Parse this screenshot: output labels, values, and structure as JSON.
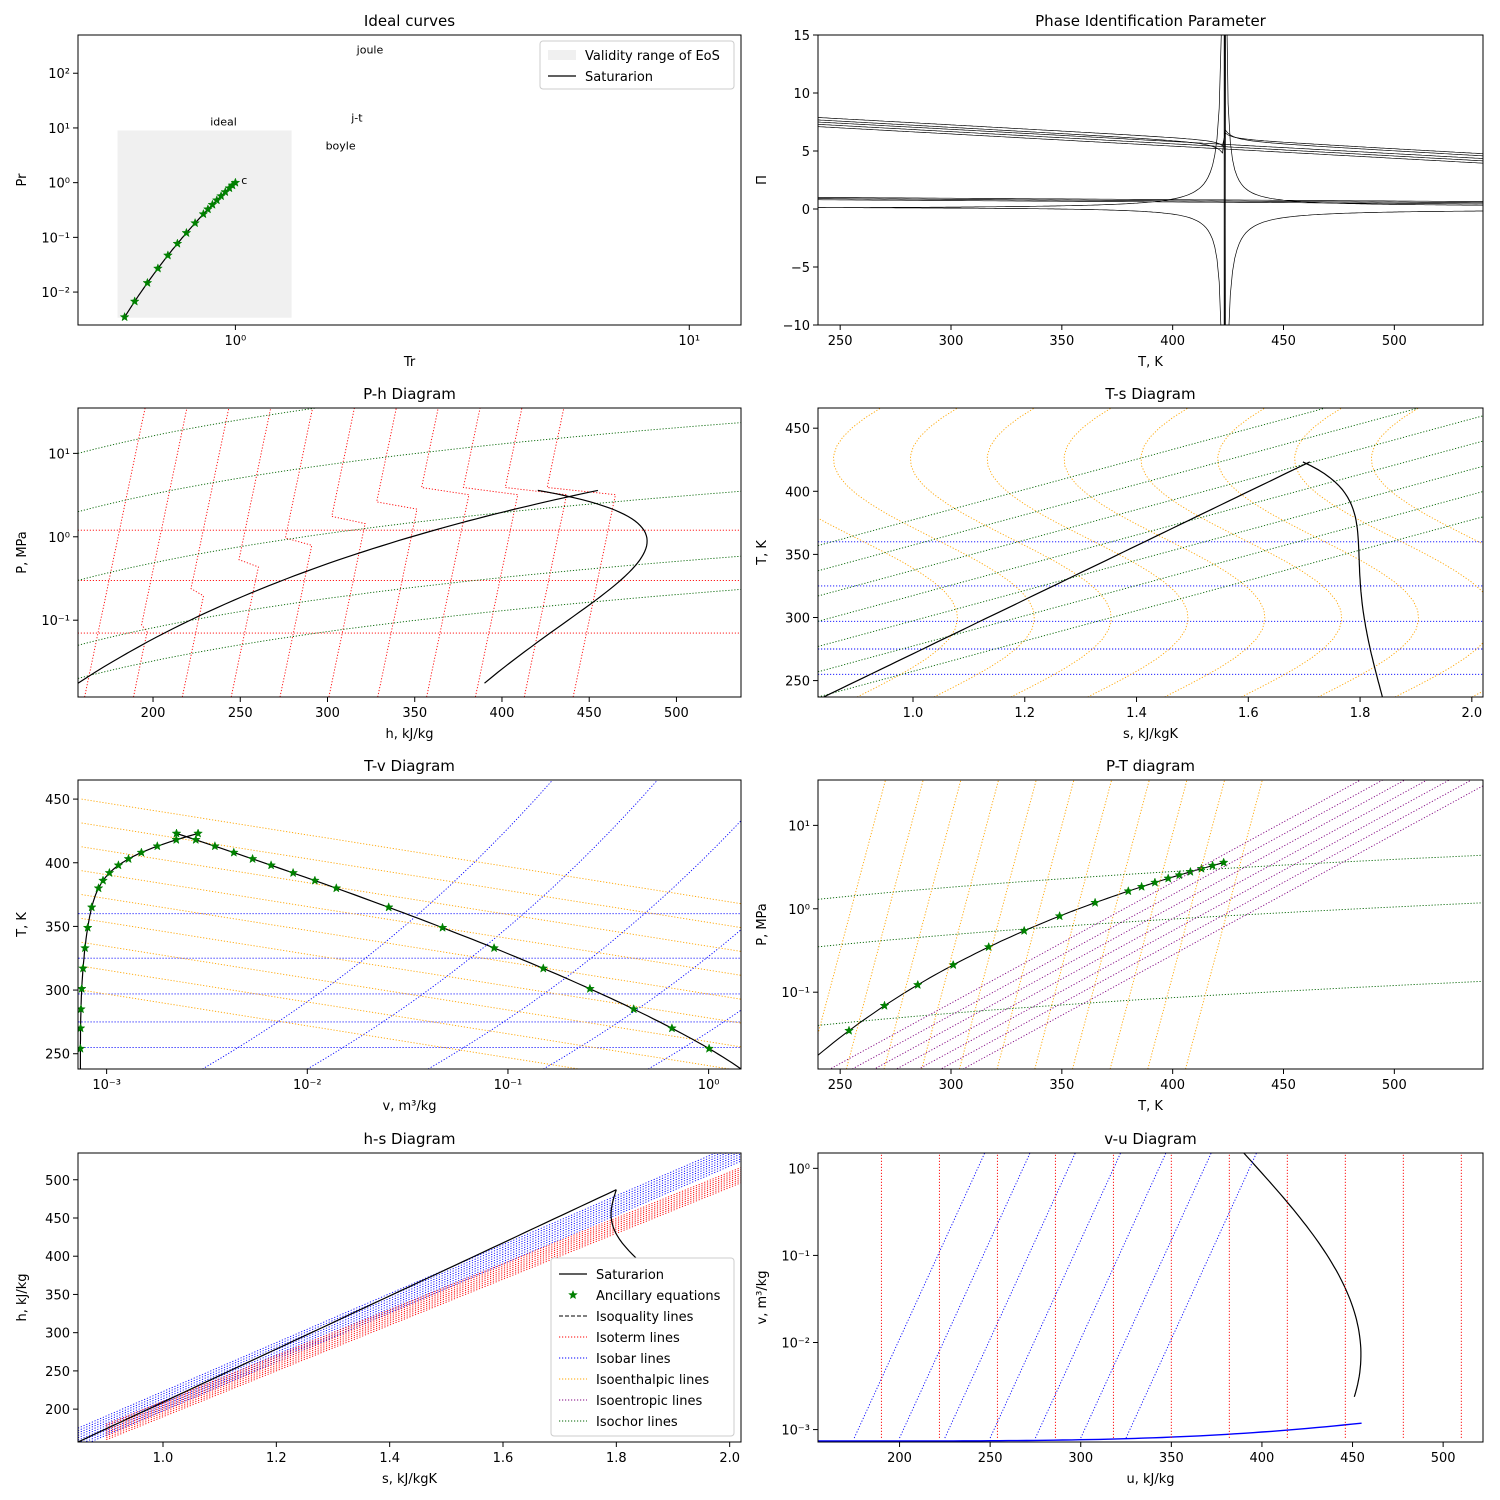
{
  "colors": {
    "saturation": "#000000",
    "ancillary": "#008000",
    "isoquality": "#000000",
    "isotherm": "#ff0000",
    "isobar": "#0000ff",
    "isoenthalpic": "#ffa500",
    "isoentropic": "#800080",
    "isochor": "#006400",
    "validity": "#f0f0f0"
  },
  "chart_data": [
    {
      "type": "line",
      "title": "Ideal curves",
      "xlabel": "Tr",
      "ylabel": "Pr",
      "xscale": "log",
      "yscale": "log",
      "xlim": [
        0.45,
        13
      ],
      "ylim": [
        0.0025,
        500
      ],
      "xticks": [
        {
          "v": 1,
          "label": "10⁰"
        },
        {
          "v": 10,
          "label": "10¹"
        }
      ],
      "yticks": [
        {
          "v": 0.01,
          "label": "10⁻²"
        },
        {
          "v": 0.1,
          "label": "10⁻¹"
        },
        {
          "v": 1,
          "label": "10⁰"
        },
        {
          "v": 10,
          "label": "10¹"
        },
        {
          "v": 100,
          "label": "10²"
        }
      ],
      "curve_labels": [
        "joule",
        "ideal",
        "j-t",
        "boyle",
        "c"
      ],
      "legend": {
        "position": "top-right",
        "items": [
          {
            "label": "Validity range of EoS",
            "kind": "patch"
          },
          {
            "label": "Saturarion",
            "kind": "line"
          }
        ]
      },
      "validity_range": {
        "tr": [
          0.55,
          1.33
        ],
        "pr": [
          0.0034,
          9
        ]
      },
      "saturation_points_tr": [
        0.57,
        0.6,
        0.64,
        0.675,
        0.71,
        0.745,
        0.78,
        0.815,
        0.85,
        0.87,
        0.89,
        0.91,
        0.93,
        0.95,
        0.97,
        0.985,
        1.0
      ]
    },
    {
      "type": "line",
      "title": "Phase Identification Parameter",
      "xlabel": "T, K",
      "ylabel": "Π",
      "xlim": [
        240,
        540
      ],
      "ylim": [
        -10,
        15
      ],
      "xticks": [
        250,
        300,
        350,
        400,
        450,
        500
      ],
      "yticks": [
        {
          "v": -10,
          "label": "−10"
        },
        {
          "v": -5,
          "label": "−5"
        },
        {
          "v": 0,
          "label": "0"
        },
        {
          "v": 5,
          "label": "5"
        },
        {
          "v": 10,
          "label": "10"
        },
        {
          "v": 15,
          "label": "15"
        }
      ],
      "critical_temperature": 423.3
    },
    {
      "type": "line",
      "title": "P-h Diagram",
      "xlabel": "h, kJ/kg",
      "ylabel": "P, MPa",
      "yscale": "log",
      "xlim": [
        157,
        537
      ],
      "ylim": [
        0.012,
        35
      ],
      "xticks": [
        200,
        250,
        300,
        350,
        400,
        450,
        500
      ],
      "yticks": [
        {
          "v": 0.1,
          "label": "10⁻¹"
        },
        {
          "v": 1,
          "label": "10⁰"
        },
        {
          "v": 10,
          "label": "10¹"
        }
      ],
      "critical_point": {
        "h": 455,
        "P": 3.6
      }
    },
    {
      "type": "line",
      "title": "T-s Diagram",
      "xlabel": "s, kJ/kgK",
      "ylabel": "T, K",
      "xlim": [
        0.83,
        2.02
      ],
      "ylim": [
        237,
        466
      ],
      "xticks": [
        {
          "v": 1.0,
          "label": "1.0"
        },
        {
          "v": 1.2,
          "label": "1.2"
        },
        {
          "v": 1.4,
          "label": "1.4"
        },
        {
          "v": 1.6,
          "label": "1.6"
        },
        {
          "v": 1.8,
          "label": "1.8"
        },
        {
          "v": 2.0,
          "label": "2.0"
        }
      ],
      "yticks": [
        250,
        300,
        350,
        400,
        450
      ],
      "critical_point": {
        "s": 1.71,
        "T": 423.3
      }
    },
    {
      "type": "line",
      "title": "T-v Diagram",
      "xlabel": "v, m³/kg",
      "ylabel": "T, K",
      "xscale": "log",
      "xlim": [
        0.00072,
        1.45
      ],
      "ylim": [
        238,
        465
      ],
      "xticks": [
        {
          "v": 0.001,
          "label": "10⁻³"
        },
        {
          "v": 0.01,
          "label": "10⁻²"
        },
        {
          "v": 0.1,
          "label": "10⁻¹"
        },
        {
          "v": 1,
          "label": "10⁰"
        }
      ],
      "yticks": [
        250,
        300,
        350,
        400,
        450
      ],
      "critical_point": {
        "v": 0.0022,
        "T": 423.3
      },
      "ancillary_T": [
        254,
        270,
        285,
        301,
        317,
        333,
        349,
        365,
        380,
        386,
        392,
        398,
        403,
        408,
        413,
        418,
        423
      ]
    },
    {
      "type": "line",
      "title": "P-T diagram",
      "xlabel": "T, K",
      "ylabel": "P, MPa",
      "yscale": "log",
      "xlim": [
        240,
        540
      ],
      "ylim": [
        0.012,
        35
      ],
      "xticks": [
        250,
        300,
        350,
        400,
        450,
        500
      ],
      "yticks": [
        {
          "v": 0.1,
          "label": "10⁻¹"
        },
        {
          "v": 1,
          "label": "10⁰"
        },
        {
          "v": 10,
          "label": "10¹"
        }
      ],
      "ancillary_T": [
        254,
        270,
        285,
        301,
        317,
        333,
        349,
        365,
        380,
        386,
        392,
        398,
        403,
        408,
        413,
        418,
        423
      ]
    },
    {
      "type": "line",
      "title": "h-s Diagram",
      "xlabel": "s, kJ/kgK",
      "ylabel": "h, kJ/kg",
      "xlim": [
        0.85,
        2.02
      ],
      "ylim": [
        157,
        535
      ],
      "xticks": [
        {
          "v": 1.0,
          "label": "1.0"
        },
        {
          "v": 1.2,
          "label": "1.2"
        },
        {
          "v": 1.4,
          "label": "1.4"
        },
        {
          "v": 1.6,
          "label": "1.6"
        },
        {
          "v": 1.8,
          "label": "1.8"
        },
        {
          "v": 2.0,
          "label": "2.0"
        }
      ],
      "yticks": [
        200,
        250,
        300,
        350,
        400,
        450,
        500
      ],
      "legend": {
        "position": "lower-right",
        "items": [
          {
            "label": "Saturarion",
            "kind": "solid"
          },
          {
            "label": "Ancillary equations",
            "kind": "star"
          },
          {
            "label": "Isoquality lines",
            "kind": "dashed"
          },
          {
            "label": "Isoterm lines",
            "kind": "isotherm"
          },
          {
            "label": "Isobar lines",
            "kind": "isobar"
          },
          {
            "label": "Isoenthalpic lines",
            "kind": "isoenthalpic"
          },
          {
            "label": "Isoentropic lines",
            "kind": "isoentropic"
          },
          {
            "label": "Isochor lines",
            "kind": "isochor"
          }
        ]
      }
    },
    {
      "type": "line",
      "title": "v-u Diagram",
      "xlabel": "u, kJ/kg",
      "ylabel": "v, m³/kg",
      "yscale": "log",
      "xlim": [
        155,
        522
      ],
      "ylim": [
        0.00072,
        1.5
      ],
      "xticks": [
        200,
        250,
        300,
        350,
        400,
        450,
        500
      ],
      "yticks": [
        {
          "v": 0.001,
          "label": "10⁻³"
        },
        {
          "v": 0.01,
          "label": "10⁻²"
        },
        {
          "v": 0.1,
          "label": "10⁻¹"
        },
        {
          "v": 1,
          "label": "10⁰"
        }
      ]
    }
  ]
}
